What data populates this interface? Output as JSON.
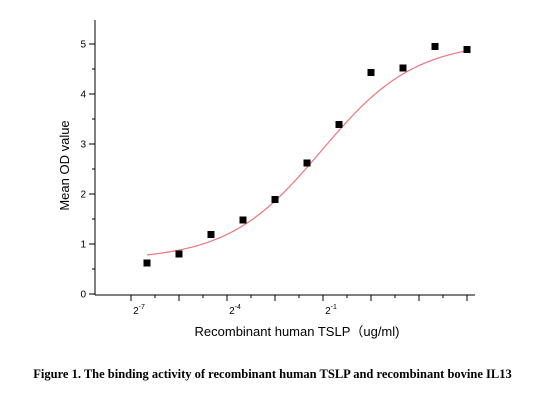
{
  "chart_data": {
    "type": "scatter",
    "title": "",
    "xlabel": "Recombinant human TSLP（ug/ml)",
    "ylabel": "Mean OD value",
    "x_scale": "log2",
    "xlim": [
      -9.2,
      -0.35
    ],
    "ylim": [
      0,
      5.5
    ],
    "x_ticks": [
      {
        "base": "2",
        "exp": "-7",
        "value": -7
      },
      {
        "base": "2",
        "exp": "-4",
        "value": -4
      },
      {
        "base": "2",
        "exp": "-1",
        "value": -1
      }
    ],
    "y_ticks": [
      "0",
      "1",
      "2",
      "3",
      "4",
      "5"
    ],
    "grid": false,
    "series": [
      {
        "color": "#000000",
        "marker": "square",
        "points": [
          {
            "x": -8.0,
            "y": 0.62
          },
          {
            "x": -7.0,
            "y": 0.8
          },
          {
            "x": -6.0,
            "y": 1.19
          },
          {
            "x": -5.0,
            "y": 1.48
          },
          {
            "x": -4.0,
            "y": 1.89
          },
          {
            "x": -3.0,
            "y": 2.62
          },
          {
            "x": -2.0,
            "y": 3.39
          },
          {
            "x": -1.0,
            "y": 4.43
          },
          {
            "x": 0.0,
            "y": 4.52
          },
          {
            "x": 1.0,
            "y": 4.95
          },
          {
            "x": 2.0,
            "y": 4.89
          }
        ]
      }
    ],
    "fit_curve": {
      "model": "4PL",
      "color": "#e8787c",
      "bottom": 0.68,
      "top": 5.05,
      "ec50_log2": -2.55,
      "hill": 0.38,
      "x_from": -8.0,
      "x_to": 2.0
    }
  },
  "caption": "Figure 1. The binding activity of recombinant human TSLP and recombinant bovine IL13"
}
